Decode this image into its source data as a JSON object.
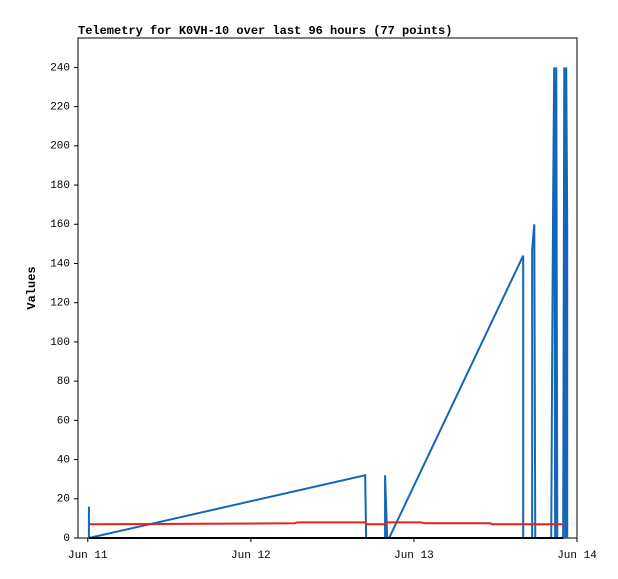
{
  "chart_data": {
    "type": "line",
    "title": "Telemetry for K0VH-10 over last 96 hours (77 points)",
    "y_label": "Values",
    "xlim": [
      10.94,
      14.0
    ],
    "xticks": [
      {
        "value": 11,
        "label": "Jun 11"
      },
      {
        "value": 12,
        "label": "Jun 12"
      },
      {
        "value": 13,
        "label": "Jun 13"
      },
      {
        "value": 14,
        "label": "Jun 14"
      }
    ],
    "ylim": [
      0,
      255
    ],
    "yticks": [
      0,
      20,
      40,
      60,
      80,
      100,
      120,
      140,
      160,
      180,
      200,
      220,
      240
    ],
    "grid": false,
    "series": [
      {
        "color": "#1466b8",
        "line_width": 2,
        "x": [
          11.007,
          11.007,
          12.701,
          12.707,
          12.823,
          12.823,
          12.836,
          12.848,
          13.67,
          13.67,
          13.725,
          13.725,
          13.738,
          13.744,
          13.842,
          13.848,
          13.854,
          13.86,
          13.866,
          13.873,
          13.879,
          13.915,
          13.922,
          13.928,
          13.934,
          13.94,
          13.94
        ],
        "values": [
          16,
          0,
          32,
          0,
          0,
          32,
          0,
          0,
          144,
          0,
          0,
          147,
          160,
          0,
          0,
          97,
          177,
          240,
          0,
          240,
          0,
          0,
          240,
          0,
          240,
          160,
          0
        ]
      },
      {
        "color": "#e8201a",
        "line_width": 2,
        "x": [
          11.007,
          12.271,
          12.284,
          12.701,
          12.713,
          12.823,
          12.83,
          13.038,
          13.069,
          13.468,
          13.48,
          13.915
        ],
        "values": [
          7,
          7.5,
          8,
          8,
          7,
          7,
          8,
          8,
          7.5,
          7.5,
          7,
          7
        ]
      },
      {
        "color": "#000000",
        "line_width": 2,
        "x": [
          11.007,
          13.915
        ],
        "values": [
          0,
          0
        ]
      }
    ]
  }
}
